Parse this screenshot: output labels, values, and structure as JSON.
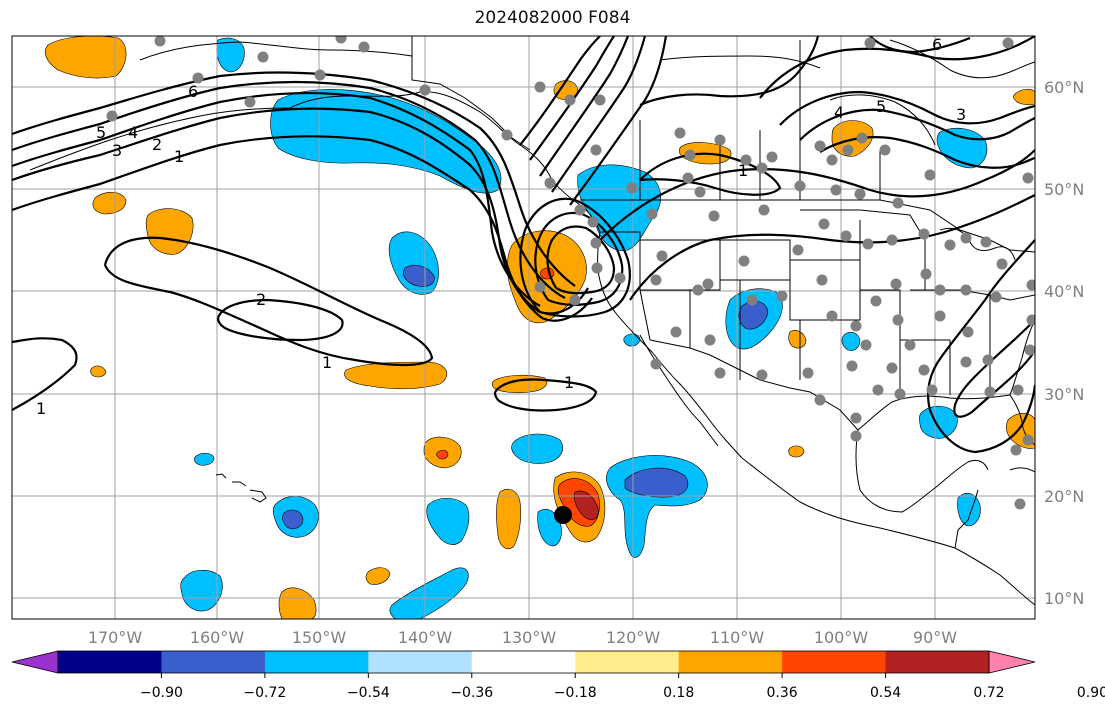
{
  "title": "2024082000 F084",
  "colors": {
    "background": "#ffffff",
    "coast": "#000000",
    "grid": "#a0a0a0",
    "contour": "#000000",
    "station": "#808080",
    "storm": "#000000",
    "pos1": "#ffa500",
    "pos2": "#ff4500",
    "pos3": "#b22222",
    "neg1": "#00bfff",
    "neg2": "#3a5fcd"
  },
  "map": {
    "lon_labels": [
      "170°W",
      "160°W",
      "150°W",
      "140°W",
      "130°W",
      "120°W",
      "110°W",
      "100°W",
      "90°W"
    ],
    "lat_labels": [
      "60°N",
      "50°N",
      "40°N",
      "30°N",
      "20°N",
      "10°N"
    ]
  },
  "contour_labels": [
    "1",
    "1",
    "1",
    "1",
    "1",
    "2",
    "2",
    "3",
    "4",
    "4",
    "5",
    "5",
    "6",
    "6",
    "3"
  ],
  "colorbar": {
    "colors": [
      "#9932cc",
      "#00008b",
      "#3a5fcd",
      "#00bfff",
      "#b0e2ff",
      "#ffffff",
      "#ffec8b",
      "#ffa500",
      "#ff4500",
      "#b22222",
      "#ff82ab"
    ],
    "tick_labels": [
      "−0.90",
      "−0.72",
      "−0.54",
      "−0.36",
      "−0.18",
      "0.18",
      "0.36",
      "0.54",
      "0.72",
      "0.90"
    ]
  }
}
